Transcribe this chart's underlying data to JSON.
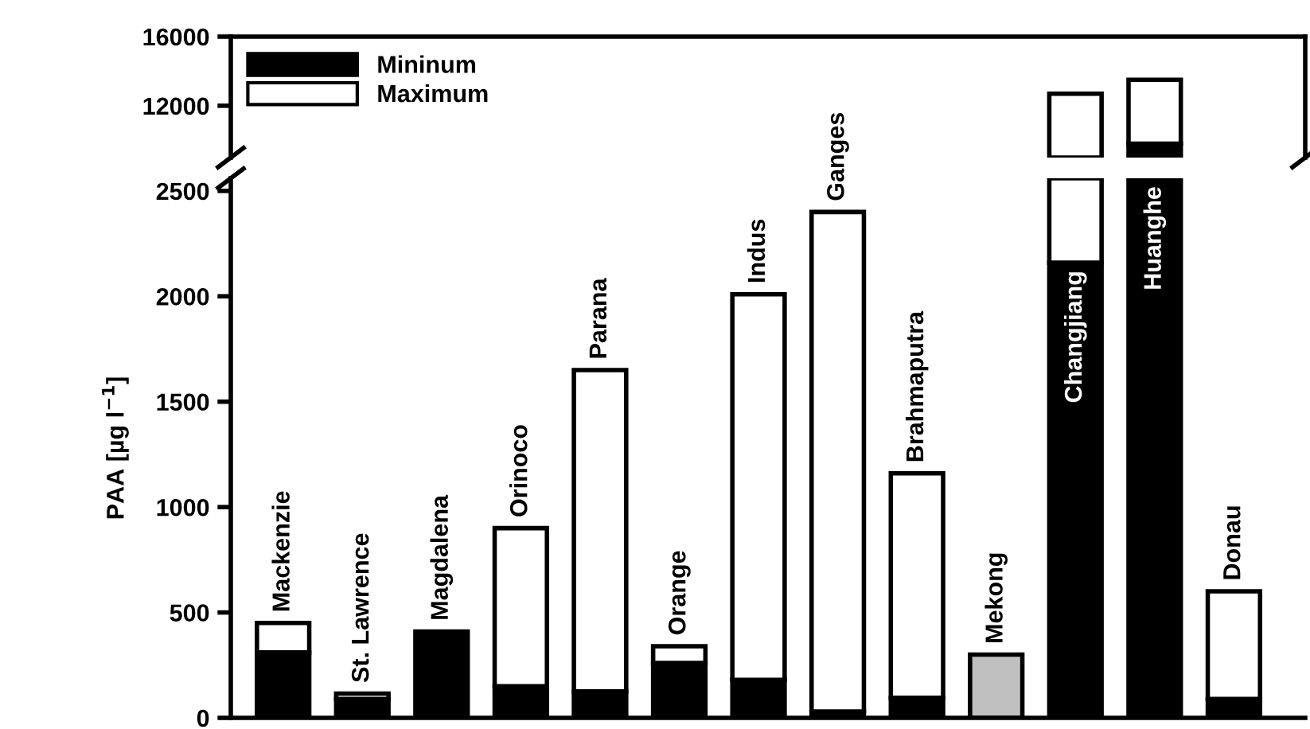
{
  "chart_data": [
    {
      "type": "bar",
      "ylim": [
        9000,
        16000
      ],
      "yticks": [
        12000,
        16000
      ],
      "tick_labels": "y",
      "legend": "top left",
      "series": [
        {
          "name": "Mininum",
          "color": "#000000",
          "values": [
            null,
            null,
            null,
            null,
            null,
            null,
            null,
            null,
            null,
            null,
            null,
            800,
            null
          ],
          "base": [
            null,
            null,
            null,
            null,
            null,
            null,
            null,
            null,
            null,
            null,
            null,
            9000,
            null
          ]
        },
        {
          "name": "Maximum",
          "color": "#ffffff",
          "values": [
            null,
            null,
            null,
            null,
            null,
            null,
            null,
            null,
            null,
            null,
            3700,
            3700,
            null
          ],
          "base": [
            null,
            null,
            null,
            null,
            null,
            null,
            null,
            null,
            null,
            null,
            9000,
            9800,
            null
          ]
        }
      ]
    },
    {
      "type": "bar",
      "stacked": true,
      "categories": [
        "Mackenzie",
        "St. Lawrence",
        "Magdalena",
        "Orinoco",
        "Parana",
        "Orange",
        "Indus",
        "Ganges",
        "Brahmaputra",
        "Mekong",
        "Changjiang",
        "Huanghe",
        "Donau"
      ],
      "ylabel": "PAA [µg l$^{−1}$]",
      "ylim": [
        0,
        2560
      ],
      "yticks": [
        0,
        500,
        1000,
        1500,
        2000,
        2500
      ],
      "series": [
        {
          "color": "#000000",
          "colors": [
            "#000000",
            "#000000",
            "#000000",
            "#000000",
            "#000000",
            "#000000",
            "#000000",
            "#000000",
            "#000000",
            "#c0c0c0",
            "#000000",
            "#000000",
            "#000000"
          ],
          "values": [
            310,
            90,
            410,
            150,
            125,
            260,
            180,
            30,
            95,
            300,
            2160,
            2560,
            90
          ]
        },
        {
          "color": "#ffffff",
          "values": [
            140,
            25,
            null,
            750,
            1525,
            80,
            1830,
            2370,
            1065,
            null,
            400,
            null,
            510
          ]
        }
      ]
    }
  ]
}
